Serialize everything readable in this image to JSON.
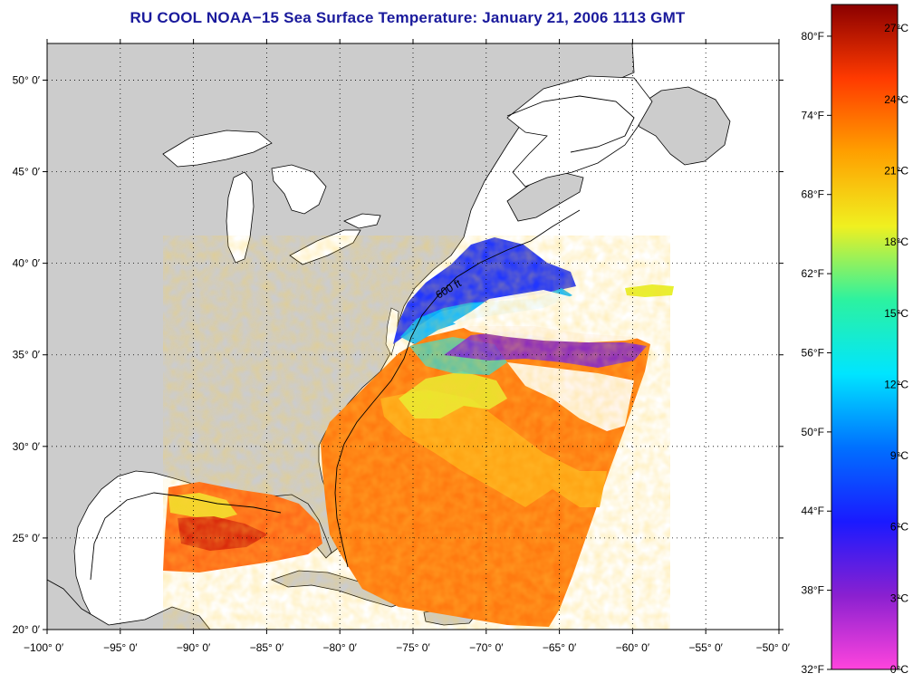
{
  "title": "RU COOL  NOAA−15  Sea Surface Temperature:  January 21, 2006 1113 GMT",
  "map": {
    "lon_range": [
      -100,
      -50
    ],
    "lat_range": [
      20,
      52
    ],
    "lat_ticks": [
      {
        "value": 20,
        "label": "20° 0′"
      },
      {
        "value": 25,
        "label": "25° 0′"
      },
      {
        "value": 30,
        "label": "30° 0′"
      },
      {
        "value": 35,
        "label": "35° 0′"
      },
      {
        "value": 40,
        "label": "40° 0′"
      },
      {
        "value": 45,
        "label": "45° 0′"
      },
      {
        "value": 50,
        "label": "50° 0′"
      }
    ],
    "lon_ticks": [
      {
        "value": -100,
        "label": "−100° 0′"
      },
      {
        "value": -95,
        "label": "−95° 0′"
      },
      {
        "value": -90,
        "label": "−90° 0′"
      },
      {
        "value": -85,
        "label": "−85° 0′"
      },
      {
        "value": -80,
        "label": "−80° 0′"
      },
      {
        "value": -75,
        "label": "−75° 0′"
      },
      {
        "value": -70,
        "label": "−70° 0′"
      },
      {
        "value": -65,
        "label": "−65° 0′"
      },
      {
        "value": -60,
        "label": "−60° 0′"
      },
      {
        "value": -55,
        "label": "−55° 0′"
      },
      {
        "value": -50,
        "label": "−50° 0′"
      }
    ],
    "grid": "dotted",
    "land_color": "#cccccc",
    "ocean_no_data_color": "#ffffff",
    "isobath_label": "600 ft"
  },
  "colorbar": {
    "celsius_range": [
      0,
      28
    ],
    "celsius_labels": [
      {
        "value": 0,
        "label": "0°C"
      },
      {
        "value": 3,
        "label": "3°C"
      },
      {
        "value": 6,
        "label": "6°C"
      },
      {
        "value": 9,
        "label": "9°C"
      },
      {
        "value": 12,
        "label": "12°C"
      },
      {
        "value": 15,
        "label": "15°C"
      },
      {
        "value": 18,
        "label": "18°C"
      },
      {
        "value": 21,
        "label": "21°C"
      },
      {
        "value": 24,
        "label": "24°C"
      },
      {
        "value": 27,
        "label": "27°C"
      }
    ],
    "fahrenheit_labels": [
      {
        "value": 32,
        "label": "32°F"
      },
      {
        "value": 38,
        "label": "38°F"
      },
      {
        "value": 44,
        "label": "44°F"
      },
      {
        "value": 50,
        "label": "50°F"
      },
      {
        "value": 56,
        "label": "56°F"
      },
      {
        "value": 62,
        "label": "62°F"
      },
      {
        "value": 68,
        "label": "68°F"
      },
      {
        "value": 74,
        "label": "74°F"
      },
      {
        "value": 80,
        "label": "80°F"
      }
    ],
    "colors": [
      "#ff44dd",
      "#8a20d0",
      "#1a1aff",
      "#0070ff",
      "#00e5ff",
      "#2cf2a0",
      "#f0f020",
      "#ffa000",
      "#ff3a00",
      "#8a0000"
    ]
  }
}
